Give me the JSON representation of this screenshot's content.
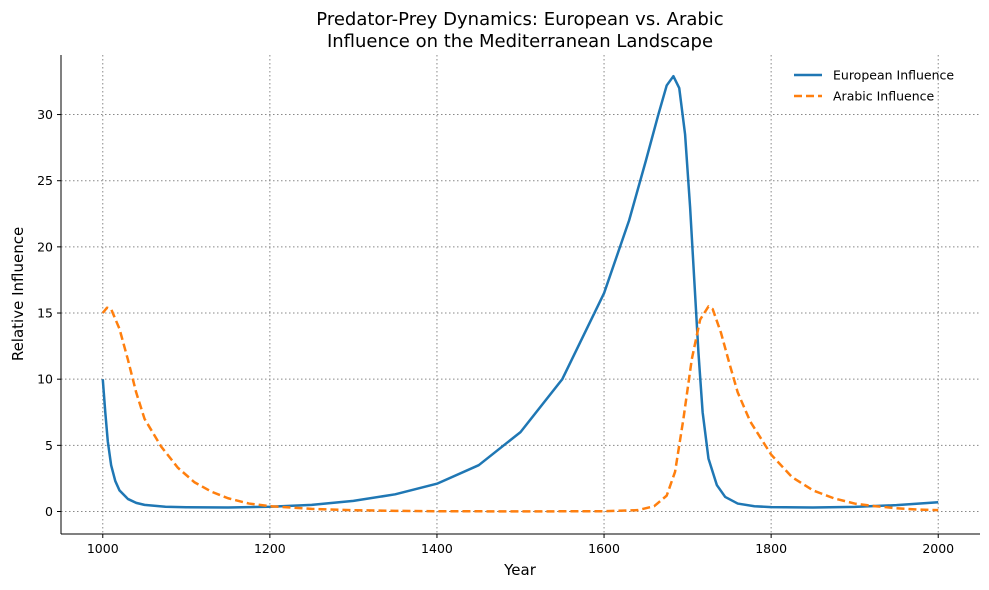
{
  "chart_data": {
    "type": "line",
    "title_line1": "Predator-Prey Dynamics: European vs. Arabic",
    "title_line2": "Influence on the Mediterranean Landscape",
    "xlabel": "Year",
    "ylabel": "Relative Influence",
    "xlim": [
      950,
      2050
    ],
    "ylim": [
      -1.7,
      34.5
    ],
    "xticks": [
      1000,
      1200,
      1400,
      1600,
      1800,
      2000
    ],
    "yticks": [
      0,
      5,
      10,
      15,
      20,
      25,
      30
    ],
    "grid": true,
    "legend_position": "top-right",
    "series": [
      {
        "name": "European Influence",
        "color": "#1f77b4",
        "style": "solid",
        "points": [
          [
            1000,
            10
          ],
          [
            1003,
            7.5
          ],
          [
            1006,
            5.3
          ],
          [
            1010,
            3.5
          ],
          [
            1015,
            2.3
          ],
          [
            1020,
            1.6
          ],
          [
            1030,
            0.95
          ],
          [
            1040,
            0.65
          ],
          [
            1050,
            0.5
          ],
          [
            1075,
            0.36
          ],
          [
            1100,
            0.32
          ],
          [
            1150,
            0.3
          ],
          [
            1200,
            0.36
          ],
          [
            1250,
            0.5
          ],
          [
            1300,
            0.8
          ],
          [
            1350,
            1.3
          ],
          [
            1400,
            2.1
          ],
          [
            1450,
            3.5
          ],
          [
            1500,
            6.0
          ],
          [
            1550,
            10.0
          ],
          [
            1600,
            16.5
          ],
          [
            1630,
            22.0
          ],
          [
            1650,
            26.5
          ],
          [
            1665,
            30.0
          ],
          [
            1675,
            32.2
          ],
          [
            1683,
            32.9
          ],
          [
            1690,
            32.0
          ],
          [
            1697,
            28.5
          ],
          [
            1703,
            23.0
          ],
          [
            1708,
            17.5
          ],
          [
            1713,
            12.0
          ],
          [
            1718,
            7.5
          ],
          [
            1725,
            4.0
          ],
          [
            1735,
            2.0
          ],
          [
            1745,
            1.1
          ],
          [
            1760,
            0.6
          ],
          [
            1780,
            0.4
          ],
          [
            1800,
            0.33
          ],
          [
            1850,
            0.3
          ],
          [
            1900,
            0.35
          ],
          [
            1950,
            0.48
          ],
          [
            2000,
            0.7
          ]
        ]
      },
      {
        "name": "Arabic Influence",
        "color": "#ff7f0e",
        "style": "dashed",
        "points": [
          [
            1000,
            15
          ],
          [
            1005,
            15.4
          ],
          [
            1010,
            15.3
          ],
          [
            1020,
            13.8
          ],
          [
            1030,
            11.5
          ],
          [
            1040,
            9.0
          ],
          [
            1050,
            7.0
          ],
          [
            1070,
            4.9
          ],
          [
            1090,
            3.3
          ],
          [
            1110,
            2.2
          ],
          [
            1130,
            1.5
          ],
          [
            1150,
            1.0
          ],
          [
            1175,
            0.6
          ],
          [
            1200,
            0.4
          ],
          [
            1250,
            0.2
          ],
          [
            1300,
            0.1
          ],
          [
            1350,
            0.05
          ],
          [
            1400,
            0.02
          ],
          [
            1500,
            0.01
          ],
          [
            1600,
            0.02
          ],
          [
            1640,
            0.1
          ],
          [
            1660,
            0.4
          ],
          [
            1675,
            1.2
          ],
          [
            1685,
            3.0
          ],
          [
            1695,
            7.0
          ],
          [
            1705,
            11.5
          ],
          [
            1715,
            14.5
          ],
          [
            1725,
            15.5
          ],
          [
            1730,
            15.3
          ],
          [
            1740,
            13.5
          ],
          [
            1750,
            11.2
          ],
          [
            1760,
            9.0
          ],
          [
            1775,
            6.8
          ],
          [
            1800,
            4.3
          ],
          [
            1825,
            2.6
          ],
          [
            1850,
            1.6
          ],
          [
            1875,
            1.0
          ],
          [
            1900,
            0.6
          ],
          [
            1925,
            0.4
          ],
          [
            1950,
            0.25
          ],
          [
            1975,
            0.15
          ],
          [
            2000,
            0.1
          ]
        ]
      }
    ]
  }
}
